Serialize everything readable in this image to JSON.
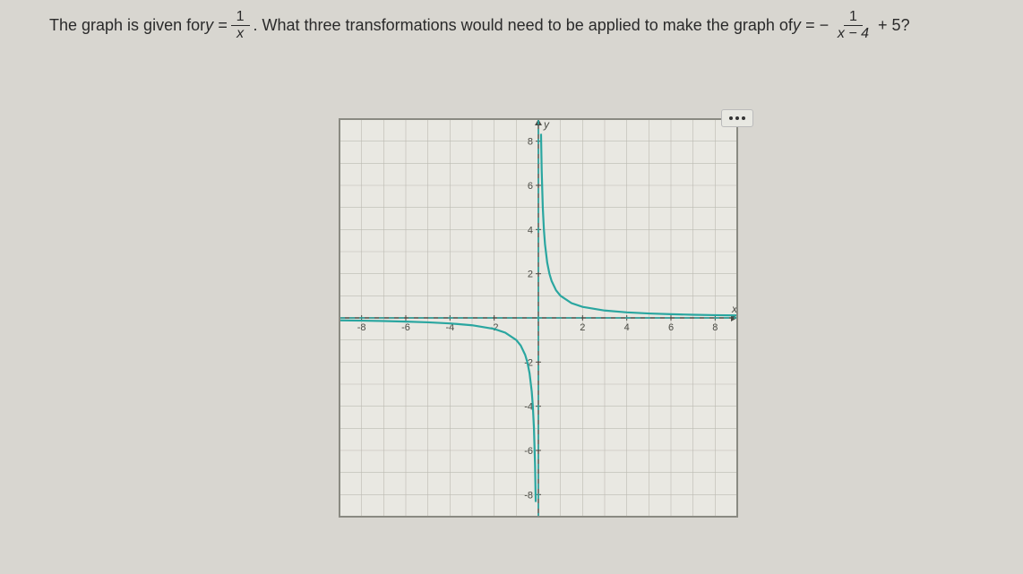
{
  "question": {
    "prefix": "The graph is given for ",
    "eq1_lhs": "y = ",
    "frac1_num": "1",
    "frac1_den": "x",
    "middle": ". What three transformations would need to be applied to make the graph of ",
    "eq2_lhs": "y = − ",
    "frac2_num": "1",
    "frac2_den": "x − 4",
    "suffix": " + 5?"
  },
  "graph": {
    "type": "line",
    "background_color": "#e9e8e2",
    "grid_color": "#bcbab2",
    "border_color": "#8a8a82",
    "axis_color": "#4a4a44",
    "curve_color": "#2aa6a0",
    "curve_width": 2.2,
    "asymptote_dash": "6,5",
    "xlim": [
      -9,
      9
    ],
    "ylim": [
      -9,
      9
    ],
    "tick_step": 2,
    "x_ticks": [
      -8,
      -6,
      -4,
      -2,
      2,
      4,
      6,
      8
    ],
    "y_ticks": [
      -8,
      -6,
      -4,
      -2,
      2,
      4,
      6,
      8
    ],
    "x_axis_label": "x",
    "y_axis_label": "y",
    "label_fontsize": 12,
    "tick_fontsize": 11,
    "curve_left_x": [
      -9,
      -8,
      -7,
      -6,
      -5,
      -4,
      -3,
      -2,
      -1.5,
      -1,
      -0.8,
      -0.6,
      -0.5,
      -0.4,
      -0.3,
      -0.25,
      -0.2,
      -0.15,
      -0.12
    ],
    "curve_right_x": [
      0.12,
      0.15,
      0.2,
      0.25,
      0.3,
      0.4,
      0.5,
      0.6,
      0.8,
      1,
      1.5,
      2,
      3,
      4,
      5,
      6,
      7,
      8,
      9
    ]
  },
  "menu": {
    "name": "more-options"
  }
}
